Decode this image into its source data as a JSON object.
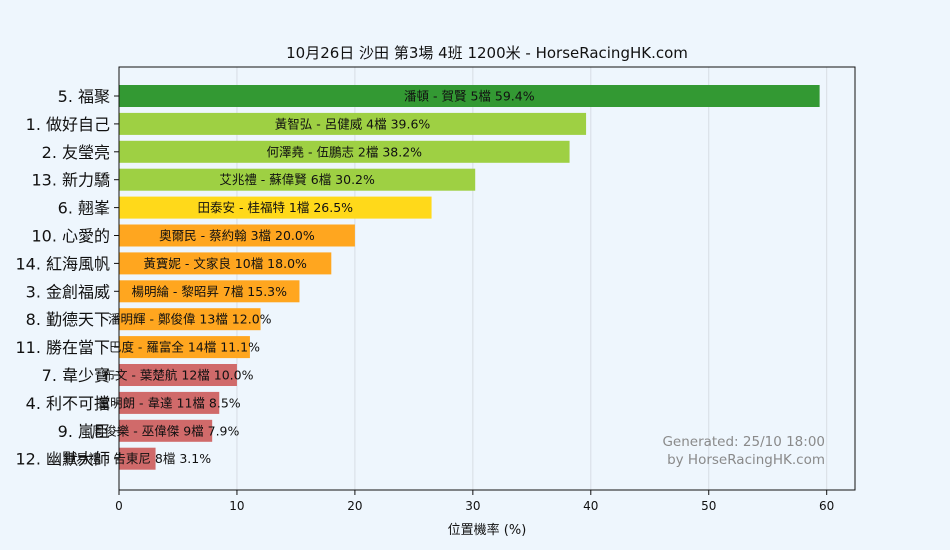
{
  "chart_data": {
    "type": "bar",
    "orientation": "horizontal",
    "title": "10月26日  沙田  第3場  4班  1200米 - HorseRacingHK.com",
    "xlabel": "位置機率 (%)",
    "ylabel": "",
    "xlim": [
      0,
      62.4
    ],
    "xticks": [
      0,
      10,
      20,
      30,
      40,
      50,
      60
    ],
    "grid": "vertical",
    "categories": [
      "5. 福聚",
      "1. 做好自己",
      "2. 友瑩亮",
      "13. 新力驕",
      "6. 翹峯",
      "10. 心愛的",
      "14. 紅海風帆",
      "3. 金創福威",
      "8. 勤德天下",
      "11. 勝在當下",
      "7. 韋少寶",
      "4. 利不可擋",
      "9. 嵐臣",
      "12. 幽默大師"
    ],
    "values": [
      59.4,
      39.6,
      38.2,
      30.2,
      26.5,
      20.0,
      18.0,
      15.3,
      12.0,
      11.1,
      10.0,
      8.5,
      7.9,
      3.1
    ],
    "bar_labels": [
      "潘頓 - 賀賢 5檔  59.4%",
      "黃智弘 - 呂健威 4檔  39.6%",
      "何澤堯 - 伍鵬志 2檔  38.2%",
      "艾兆禮 - 蘇偉賢 6檔  30.2%",
      "田泰安 - 桂福特 1檔  26.5%",
      "奧爾民 - 蔡約翰 3檔  20.0%",
      "黃寶妮 - 文家良 10檔  18.0%",
      "楊明綸 - 黎昭昇 7檔  15.3%",
      "潘明輝 - 鄭俊偉 13檔  12.0%",
      "巴度 - 羅富全 14檔  11.1%",
      "布文 - 葉楚航 12檔  10.0%",
      "董明朗 - 韋達 11檔  8.5%",
      "周俊樂 - 巫偉傑 9檔  7.9%",
      "鍾易禮 - 告東尼 8檔  3.1%"
    ],
    "colors": [
      "#339933",
      "#9ed043",
      "#9ed043",
      "#9ed043",
      "#ffd91a",
      "#ffa61f",
      "#ffa61f",
      "#ffa61f",
      "#ffa61f",
      "#ffa61f",
      "#d06a6a",
      "#d06a6a",
      "#d06a6a",
      "#d06a6a"
    ],
    "watermark": [
      "Generated: 25/10 18:00",
      "by HorseRacingHK.com"
    ]
  }
}
